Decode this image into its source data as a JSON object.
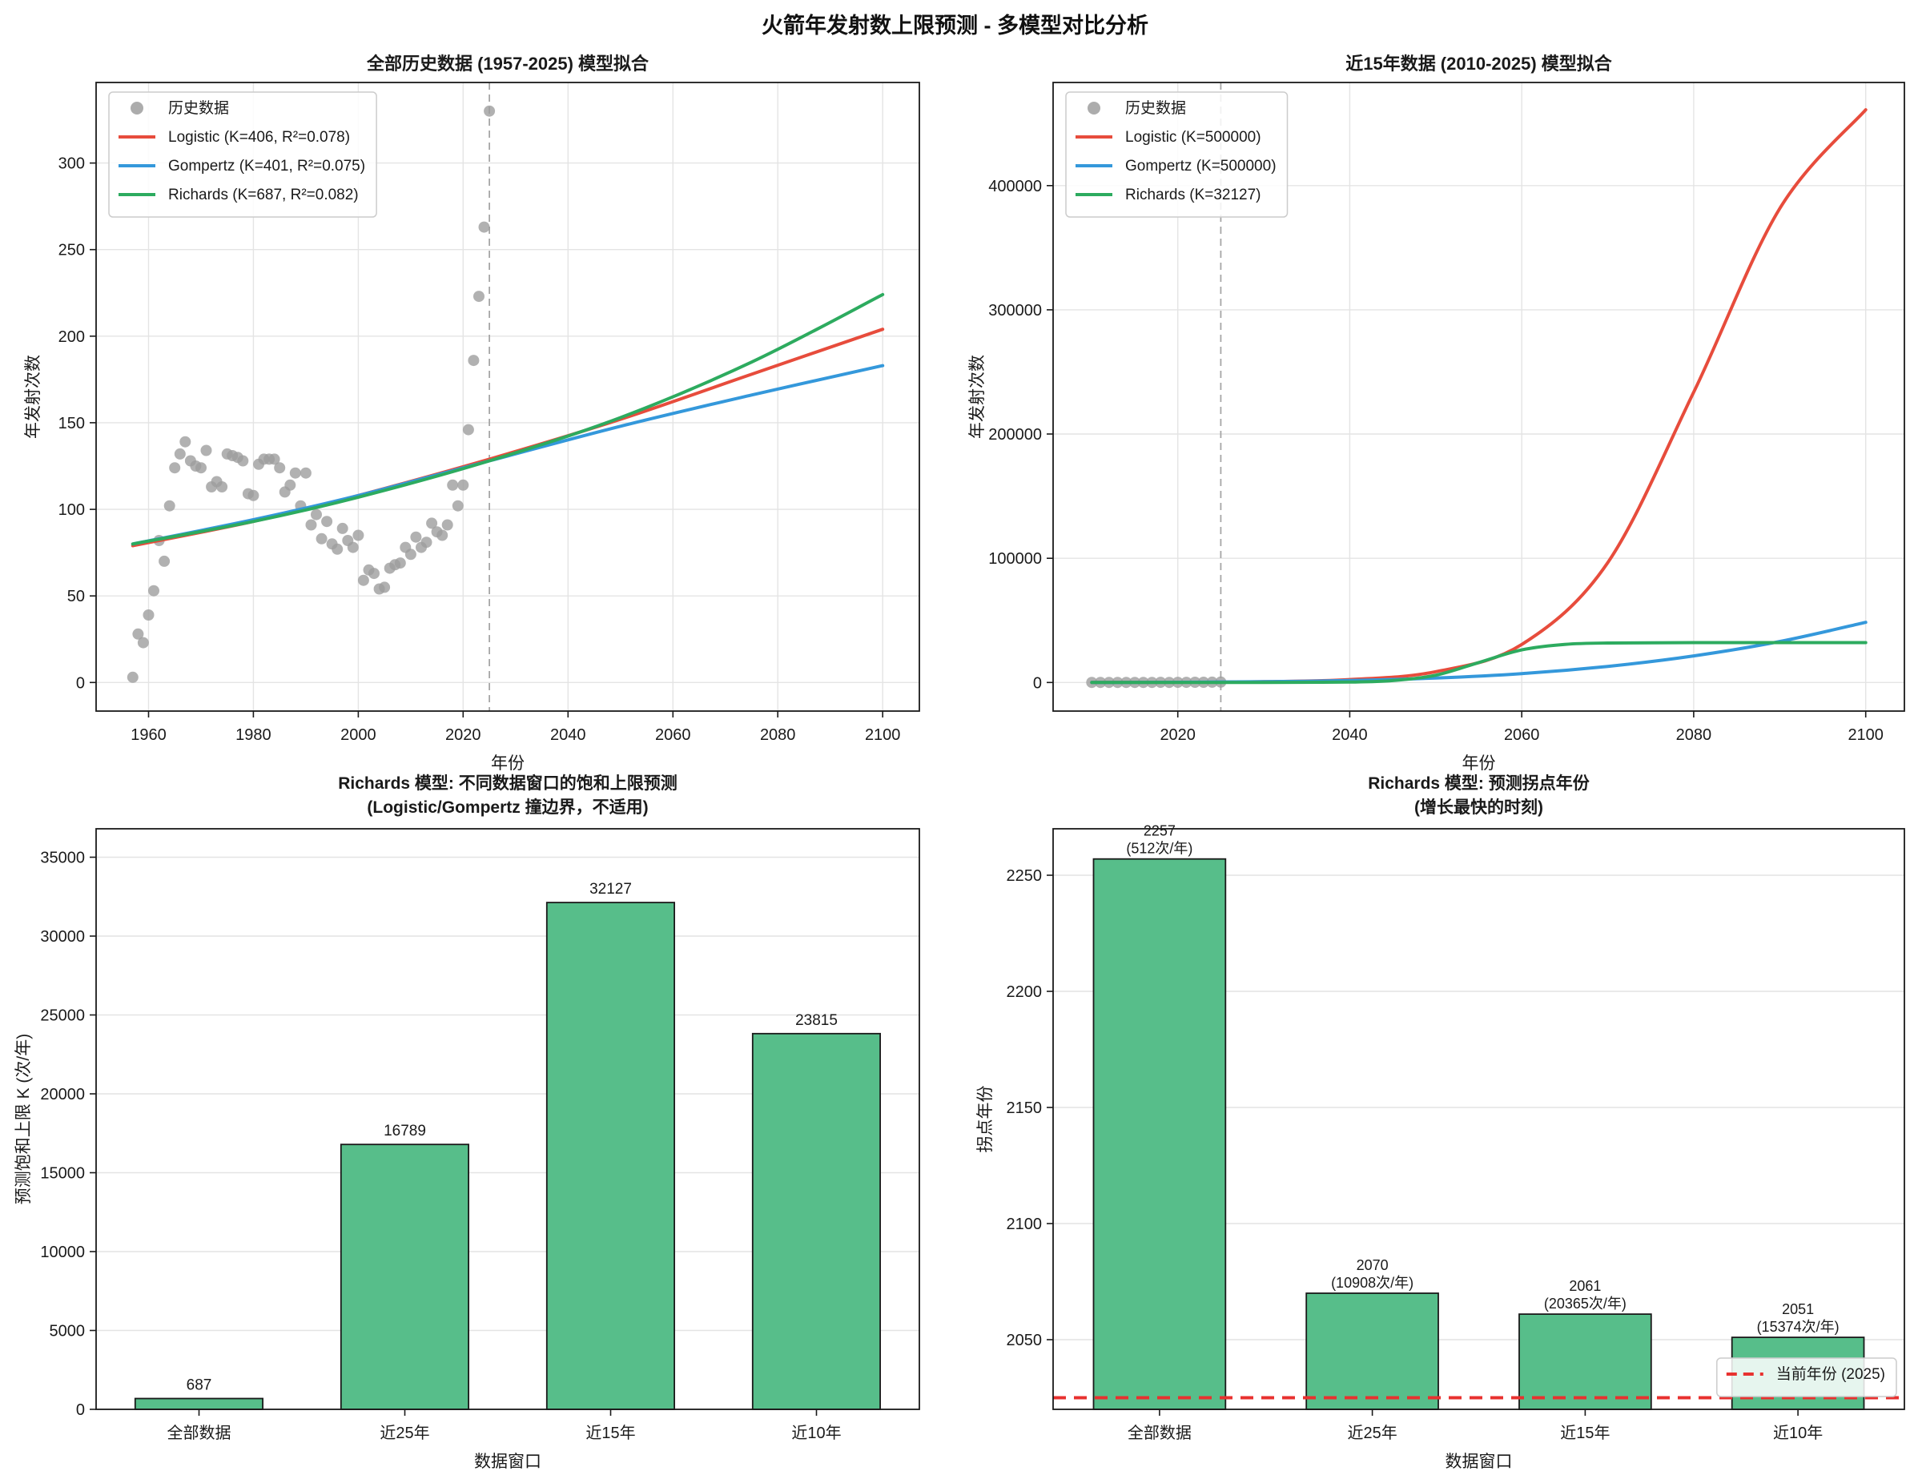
{
  "suptitle": "火箭年发射数上限预测 - 多模型对比分析",
  "colors": {
    "red": "#e74c3c",
    "blue": "#3498db",
    "green": "#2dab5f",
    "bar": "#57be8a",
    "bar_edge": "#1a1a1a",
    "scatter": "#9e9e9e",
    "grid": "#e4e4e4",
    "frame": "#1a1a1a",
    "vline": "#a6a6a6",
    "hline_red": "#e8312f",
    "text": "#1a1a1a",
    "legend_border": "#cccccc"
  },
  "chart_data": [
    {
      "id": "full-history",
      "type": "scatter+line",
      "title": "全部历史数据 (1957-2025) 模型拟合",
      "xlabel": "年份",
      "ylabel": "年发射次数",
      "xlim": [
        1950,
        2107
      ],
      "ylim": [
        -16.5,
        346.5
      ],
      "xticks": [
        1960,
        1980,
        2000,
        2020,
        2040,
        2060,
        2080,
        2100
      ],
      "yticks": [
        0,
        50,
        100,
        150,
        200,
        250,
        300
      ],
      "vline_year": 2025,
      "scatter_label": "历史数据",
      "scatter_start_year": 1957,
      "scatter_values": [
        3,
        28,
        23,
        39,
        53,
        82,
        70,
        102,
        124,
        132,
        139,
        128,
        125,
        124,
        134,
        113,
        116,
        113,
        132,
        131,
        130,
        128,
        109,
        108,
        126,
        129,
        129,
        129,
        124,
        110,
        114,
        121,
        102,
        121,
        91,
        97,
        83,
        93,
        80,
        77,
        89,
        82,
        78,
        85,
        59,
        65,
        63,
        54,
        55,
        66,
        68,
        69,
        78,
        74,
        84,
        78,
        81,
        92,
        87,
        85,
        91,
        114,
        102,
        114,
        146,
        186,
        223,
        263,
        330
      ],
      "series": [
        {
          "slug": "logistic",
          "label": "Logistic (K=406, R²=0.078)",
          "color": "red",
          "anchors": [
            [
              1957,
              79
            ],
            [
              1980,
              93
            ],
            [
              2000,
              108
            ],
            [
              2025,
              129
            ],
            [
              2050,
              152
            ],
            [
              2075,
              178
            ],
            [
              2100,
              204
            ]
          ]
        },
        {
          "slug": "gompertz",
          "label": "Gompertz (K=401, R²=0.075)",
          "color": "blue",
          "anchors": [
            [
              1957,
              80
            ],
            [
              1980,
              94
            ],
            [
              2000,
              108
            ],
            [
              2025,
              128
            ],
            [
              2050,
              148
            ],
            [
              2075,
              166
            ],
            [
              2100,
              183
            ]
          ]
        },
        {
          "slug": "richards",
          "label": "Richards (K=687, R²=0.082)",
          "color": "green",
          "anchors": [
            [
              1957,
              80
            ],
            [
              1980,
              93
            ],
            [
              2000,
              107
            ],
            [
              2025,
              128
            ],
            [
              2050,
              153
            ],
            [
              2075,
              185
            ],
            [
              2100,
              224
            ]
          ]
        }
      ]
    },
    {
      "id": "recent-15y",
      "type": "scatter+line",
      "title": "近15年数据 (2010-2025) 模型拟合",
      "xlabel": "年份",
      "ylabel": "年发射次数",
      "xlim": [
        2005.5,
        2104.5
      ],
      "ylim": [
        -23000,
        483000
      ],
      "xticks": [
        2020,
        2040,
        2060,
        2080,
        2100
      ],
      "yticks": [
        0,
        100000,
        200000,
        300000,
        400000
      ],
      "vline_year": 2025,
      "scatter_label": "历史数据",
      "scatter_start_year": 2010,
      "scatter_values": [
        74,
        84,
        78,
        81,
        92,
        87,
        85,
        91,
        114,
        102,
        114,
        146,
        186,
        223,
        263,
        330
      ],
      "series": [
        {
          "slug": "logistic",
          "label": "Logistic (K=500000)",
          "color": "red",
          "anchors": [
            [
              2010,
              50
            ],
            [
              2020,
              180
            ],
            [
              2030,
              660
            ],
            [
              2040,
              2400
            ],
            [
              2050,
              8700
            ],
            [
              2060,
              30600
            ],
            [
              2070,
              96500
            ],
            [
              2080,
              233700
            ],
            [
              2090,
              381500
            ],
            [
              2100,
              461000
            ]
          ]
        },
        {
          "slug": "gompertz",
          "label": "Gompertz (K=500000)",
          "color": "blue",
          "anchors": [
            [
              2010,
              30
            ],
            [
              2020,
              215
            ],
            [
              2030,
              635
            ],
            [
              2040,
              1600
            ],
            [
              2050,
              3600
            ],
            [
              2060,
              7150
            ],
            [
              2070,
              13000
            ],
            [
              2080,
              21400
            ],
            [
              2090,
              33000
            ],
            [
              2100,
              48400
            ]
          ]
        },
        {
          "slug": "richards",
          "label": "Richards (K=32127)",
          "color": "green",
          "anchors": [
            [
              2010,
              5
            ],
            [
              2020,
              20
            ],
            [
              2030,
              60
            ],
            [
              2040,
              350
            ],
            [
              2045,
              1530
            ],
            [
              2050,
              5860
            ],
            [
              2055,
              16064
            ],
            [
              2060,
              26270
            ],
            [
              2065,
              30700
            ],
            [
              2070,
              31800
            ],
            [
              2080,
              32100
            ],
            [
              2100,
              32127
            ]
          ]
        }
      ]
    },
    {
      "id": "k-upper-limit",
      "type": "bar",
      "title_lines": [
        "Richards 模型: 不同数据窗口的饱和上限预测",
        "(Logistic/Gompertz 撞边界，不适用)"
      ],
      "xlabel": "数据窗口",
      "ylabel": "预测饱和上限 K (次/年)",
      "categories": [
        "全部数据",
        "近25年",
        "近15年",
        "近10年"
      ],
      "values": [
        687,
        16789,
        32127,
        23815
      ],
      "bar_labels": [
        "687",
        "16789",
        "32127",
        "23815"
      ],
      "ylim": [
        0,
        36800
      ],
      "yticks": [
        0,
        5000,
        10000,
        15000,
        20000,
        25000,
        30000,
        35000
      ]
    },
    {
      "id": "inflection-year",
      "type": "bar",
      "title_lines": [
        "Richards 模型: 预测拐点年份",
        "(增长最快的时刻)"
      ],
      "xlabel": "数据窗口",
      "ylabel": "拐点年份",
      "categories": [
        "全部数据",
        "近25年",
        "近15年",
        "近10年"
      ],
      "values": [
        2257,
        2070,
        2061,
        2051
      ],
      "bar_labels": [
        "2257",
        "2070",
        "2061",
        "2051"
      ],
      "bar_sublabels": [
        "(512次/年)",
        "(10908次/年)",
        "(20365次/年)",
        "(15374次/年)"
      ],
      "ylim": [
        2020,
        2270
      ],
      "yticks": [
        2050,
        2100,
        2150,
        2200,
        2250
      ],
      "hline": {
        "y": 2025,
        "label": "当前年份 (2025)"
      }
    }
  ]
}
